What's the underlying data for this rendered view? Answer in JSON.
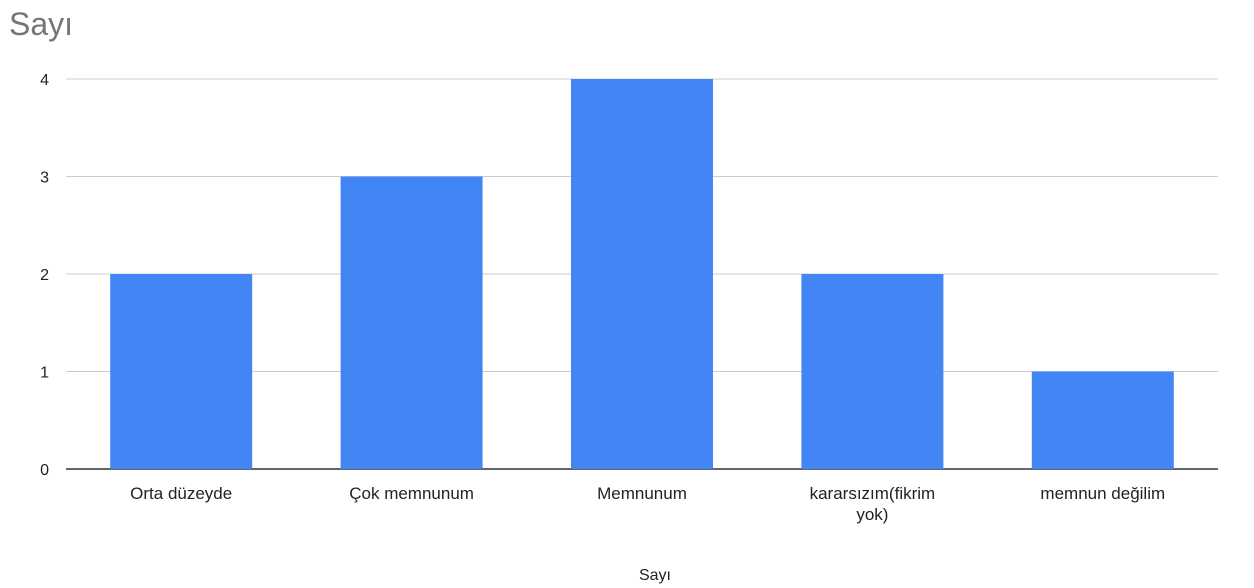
{
  "chart_data": {
    "type": "bar",
    "title": "Sayı",
    "xlabel": "Sayı",
    "ylabel": "",
    "categories": [
      "Orta düzeyde",
      "Çok memnunum",
      "Memnunum",
      "kararsızım(fikrim yok)",
      "memnun değilim"
    ],
    "category_lines": [
      [
        "Orta düzeyde"
      ],
      [
        "Çok memnunum"
      ],
      [
        "Memnunum"
      ],
      [
        "kararsızım(fikrim",
        "yok)"
      ],
      [
        "memnun değilim"
      ]
    ],
    "values": [
      2,
      3,
      4,
      2,
      1
    ],
    "ylim": [
      0,
      4
    ],
    "yticks": [
      0,
      1,
      2,
      3,
      4
    ],
    "grid": true,
    "legend": "none",
    "colors": {
      "bar": "#4285f4",
      "grid": "#cccccc",
      "axis": "#333333"
    }
  }
}
